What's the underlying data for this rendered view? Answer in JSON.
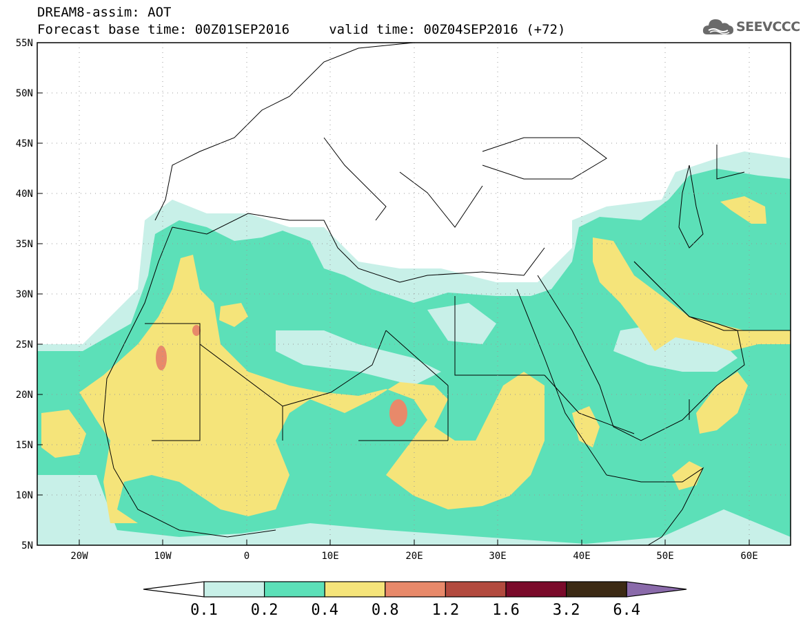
{
  "header": {
    "title_line1": "DREAM8-assim: AOT",
    "title_line2": "Forecast base time: 00Z01SEP2016     valid time: 00Z04SEP2016 (+72)"
  },
  "logo": {
    "text": "SEEVCCC",
    "icon": "cloud-icon",
    "color": "#6a6a6a"
  },
  "map": {
    "lon_range": [
      -25,
      65
    ],
    "lat_range": [
      5,
      55
    ],
    "grid": "dotted",
    "lat_ticks": [
      "55N",
      "50N",
      "45N",
      "40N",
      "35N",
      "30N",
      "25N",
      "20N",
      "15N",
      "10N",
      "5N"
    ],
    "lon_ticks": [
      "20W",
      "10W",
      "0",
      "10E",
      "20E",
      "30E",
      "40E",
      "50E",
      "60E"
    ]
  },
  "colorbar": {
    "labels": [
      "0.1",
      "0.2",
      "0.4",
      "0.8",
      "1.2",
      "1.6",
      "3.2",
      "6.4"
    ],
    "colors": [
      "#ffffff",
      "#c8f0e8",
      "#5ce0b8",
      "#f5e47a",
      "#e8896a",
      "#b24a3e",
      "#7a0a2a",
      "#3c2a14",
      "#8a6aaa"
    ]
  }
}
